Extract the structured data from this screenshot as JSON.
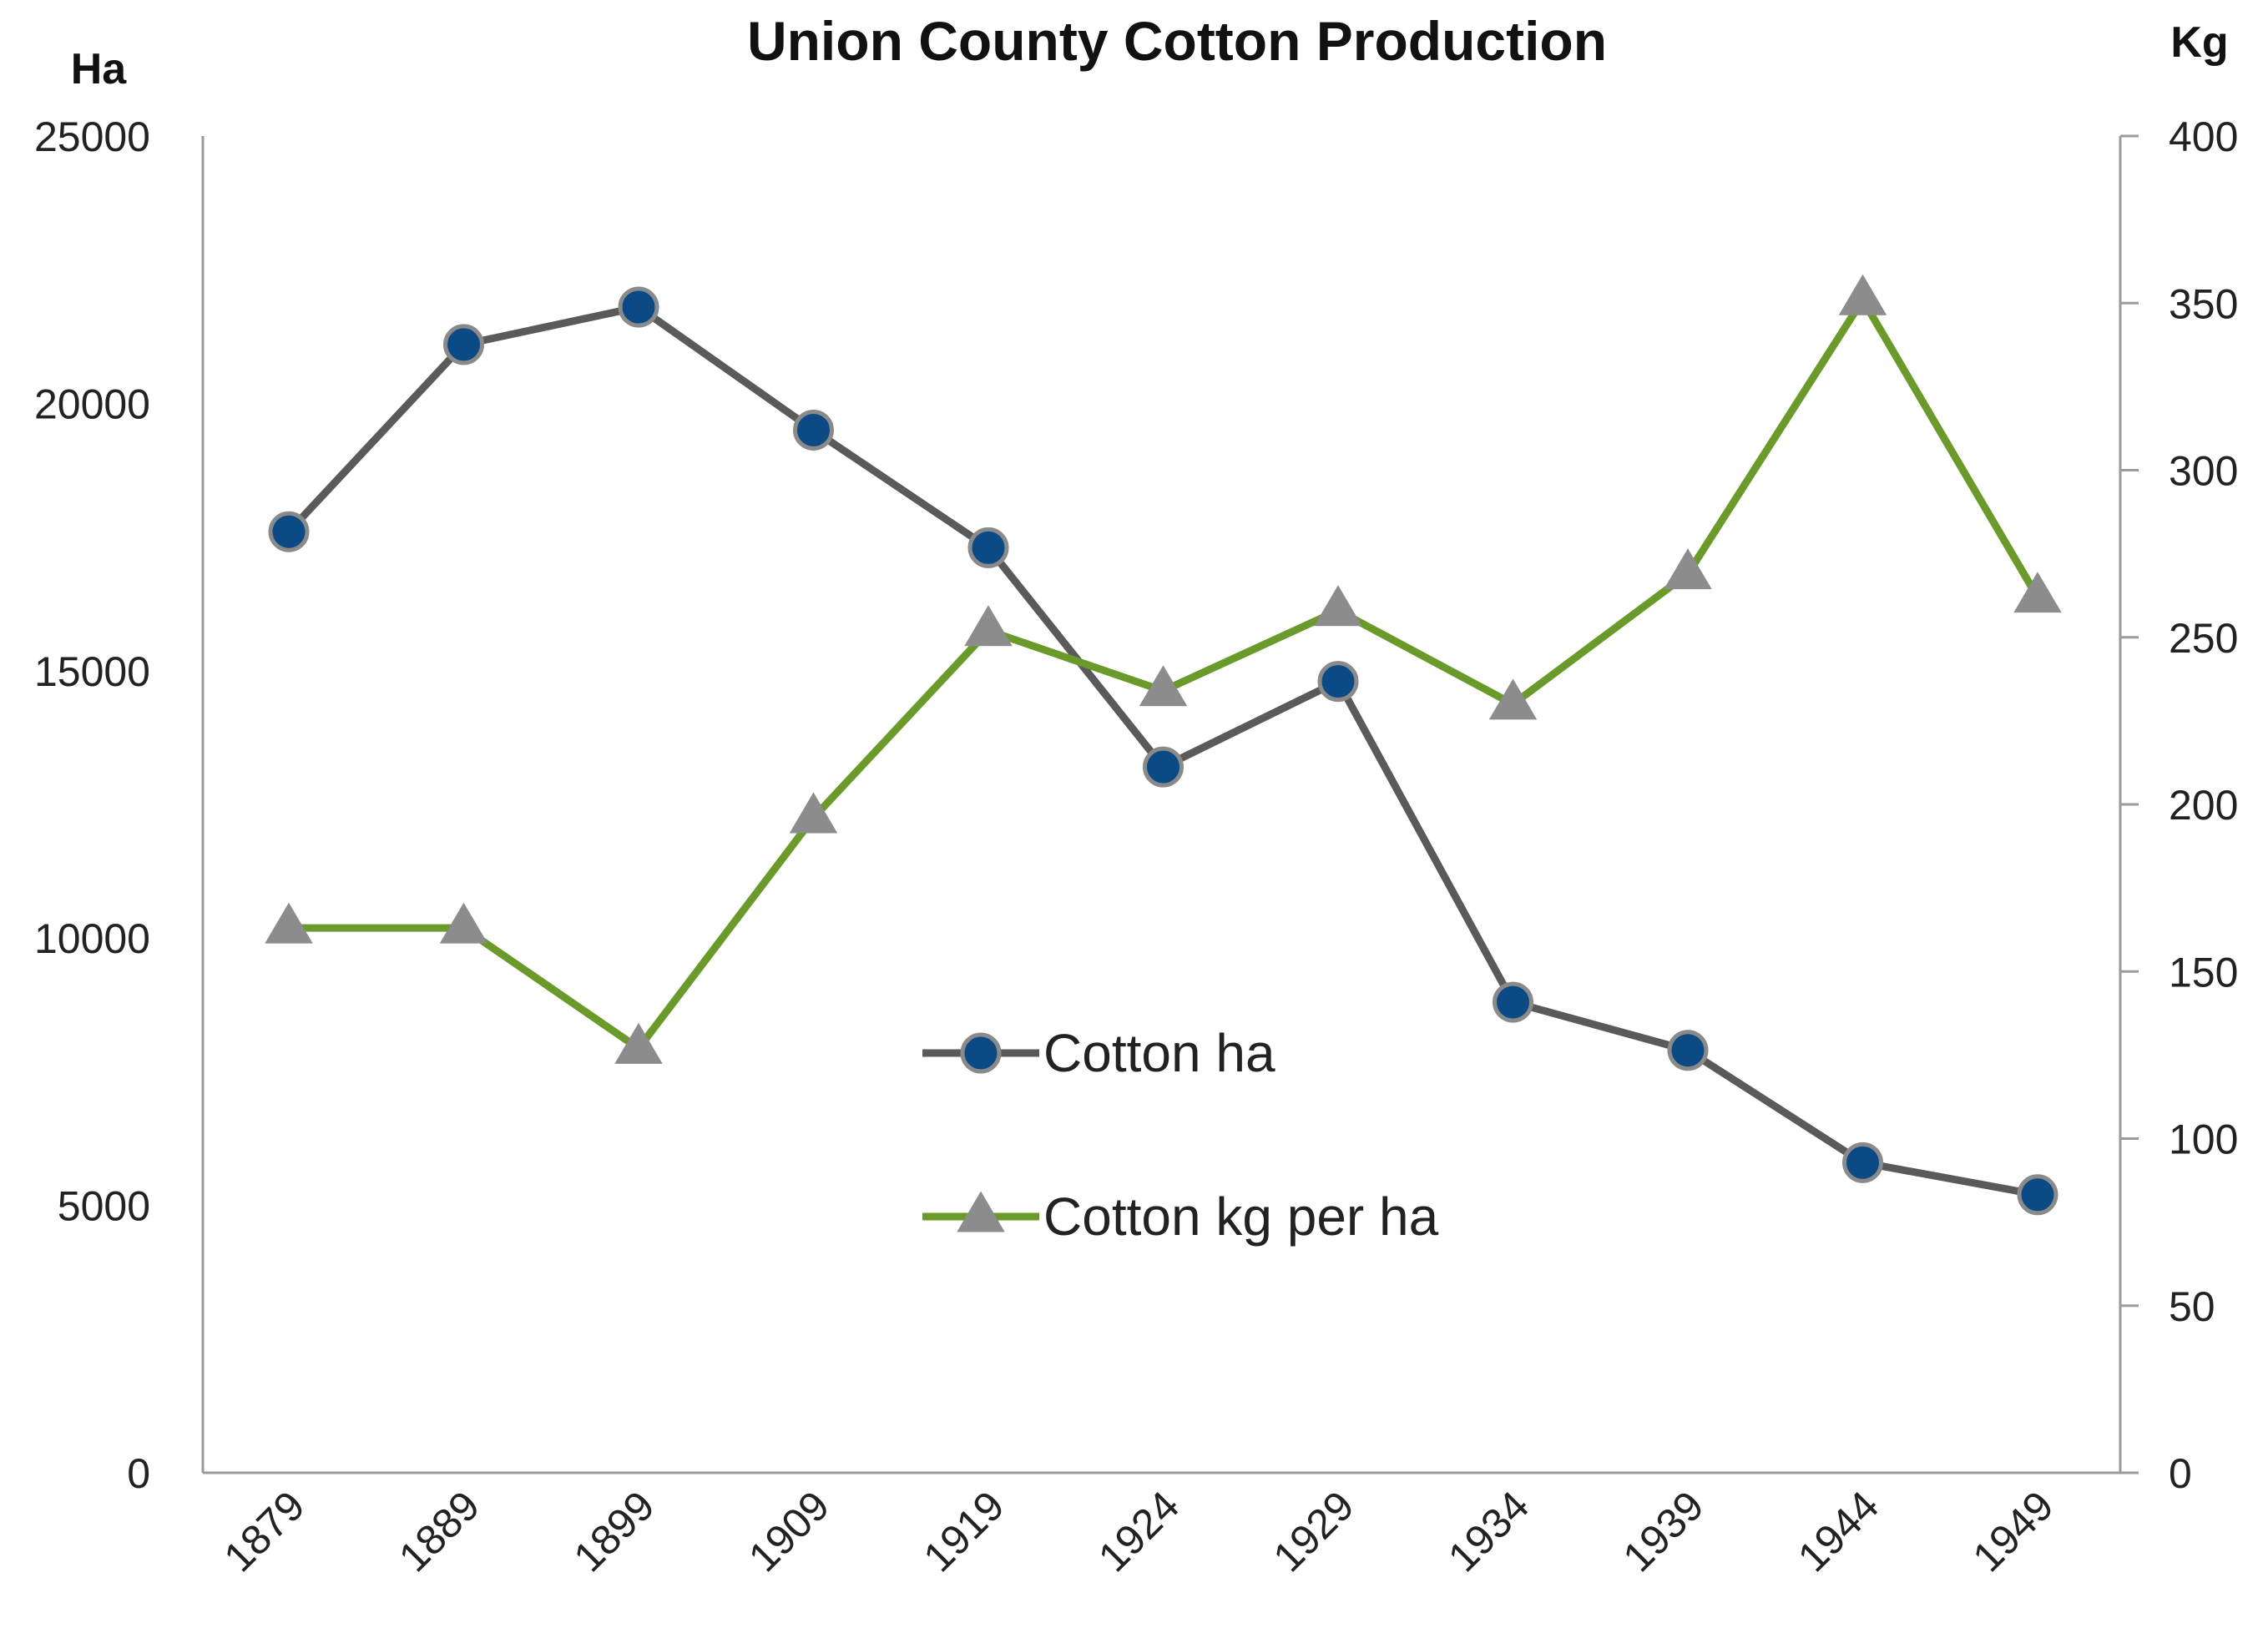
{
  "chart_data": {
    "type": "line",
    "title": "Union County Cotton Production",
    "categories": [
      "1879",
      "1889",
      "1899",
      "1909",
      "1919",
      "1924",
      "1929",
      "1934",
      "1939",
      "1944",
      "1949"
    ],
    "y_left": {
      "label": "Ha",
      "ylim": [
        0,
        25000
      ],
      "ticks": [
        "0",
        "5000",
        "10000",
        "15000",
        "20000",
        "25000"
      ]
    },
    "y_right": {
      "label": "Kg",
      "ylim": [
        0,
        400
      ],
      "ticks": [
        "0",
        "50",
        "100",
        "150",
        "200",
        "250",
        "300",
        "350",
        "400"
      ]
    },
    "series": [
      {
        "name": "Cotton ha",
        "axis": "left",
        "marker": "circle",
        "line_color": "#5a5a5a",
        "marker_color": "#0b4a85",
        "values": [
          17600,
          21100,
          21800,
          19500,
          17300,
          13200,
          14800,
          8800,
          7900,
          5800,
          5200
        ]
      },
      {
        "name": "Cotton kg per ha",
        "axis": "right",
        "marker": "triangle",
        "line_color": "#6a9a2a",
        "marker_color": "#8c8c8c",
        "values": [
          163,
          163,
          127,
          196,
          252,
          234,
          258,
          230,
          269,
          351,
          262
        ]
      }
    ],
    "grid": false,
    "legend_placement": "center"
  }
}
